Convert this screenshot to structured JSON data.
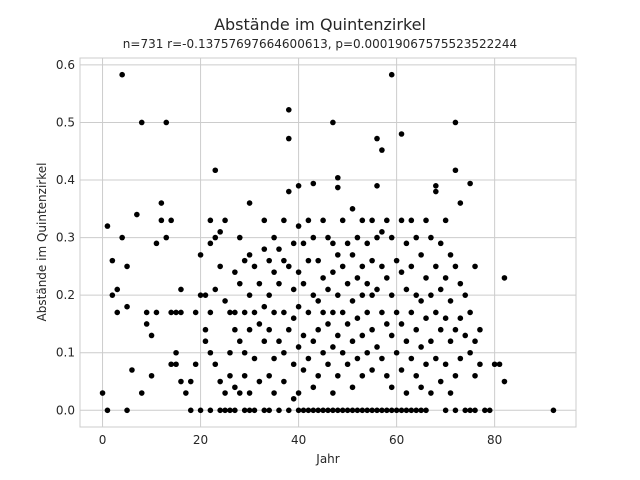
{
  "chart_data": {
    "type": "scatter",
    "title": "Abstände im Quintenzirkel",
    "subtitle": "n=731 r=-0.13757697664600613, p=0.00019067575523522244",
    "xlabel": "Jahr",
    "ylabel": "Abstände im Quintenzirkel",
    "xlim": [
      -4.6,
      96.6
    ],
    "ylim": [
      -0.029,
      0.612
    ],
    "xticks": [
      0,
      20,
      40,
      60,
      80
    ],
    "yticks": [
      0.0,
      0.1,
      0.2,
      0.3,
      0.4,
      0.5,
      0.6
    ],
    "grid": true,
    "marker_color": "#000000",
    "series": [
      {
        "points": [
          [
            0,
            0.03
          ],
          [
            1,
            0.0
          ],
          [
            1,
            0.32
          ],
          [
            2,
            0.26
          ],
          [
            2,
            0.2
          ],
          [
            3,
            0.21
          ],
          [
            3,
            0.17
          ],
          [
            4,
            0.583
          ],
          [
            4,
            0.3
          ],
          [
            5,
            0.25
          ],
          [
            5,
            0.0
          ],
          [
            5,
            0.18
          ],
          [
            6,
            0.07
          ],
          [
            7,
            0.34
          ],
          [
            8,
            0.5
          ],
          [
            8,
            0.03
          ],
          [
            9,
            0.17
          ],
          [
            9,
            0.15
          ],
          [
            10,
            0.13
          ],
          [
            10,
            0.06
          ],
          [
            11,
            0.29
          ],
          [
            11,
            0.17
          ],
          [
            12,
            0.36
          ],
          [
            12,
            0.33
          ],
          [
            13,
            0.5
          ],
          [
            13,
            0.3
          ],
          [
            14,
            0.33
          ],
          [
            14,
            0.17
          ],
          [
            14,
            0.08
          ],
          [
            15,
            0.17
          ],
          [
            15,
            0.1
          ],
          [
            15,
            0.08
          ],
          [
            16,
            0.21
          ],
          [
            16,
            0.17
          ],
          [
            16,
            0.05
          ],
          [
            17,
            0.03
          ],
          [
            18,
            0.0
          ],
          [
            18,
            0.05
          ],
          [
            19,
            0.17
          ],
          [
            19,
            0.08
          ],
          [
            20,
            0.2
          ],
          [
            20,
            0.0
          ],
          [
            20,
            0.27
          ],
          [
            21,
            0.2
          ],
          [
            21,
            0.14
          ],
          [
            21,
            0.12
          ],
          [
            22,
            0.33
          ],
          [
            22,
            0.29
          ],
          [
            22,
            0.17
          ],
          [
            22,
            0.1
          ],
          [
            22,
            0.0
          ],
          [
            23,
            0.417
          ],
          [
            23,
            0.3
          ],
          [
            23,
            0.21
          ],
          [
            23,
            0.08
          ],
          [
            24,
            0.31
          ],
          [
            24,
            0.25
          ],
          [
            24,
            0.0
          ],
          [
            24,
            0.05
          ],
          [
            25,
            0.33
          ],
          [
            25,
            0.19
          ],
          [
            25,
            0.03
          ],
          [
            25,
            0.0
          ],
          [
            26,
            0.17
          ],
          [
            26,
            0.1
          ],
          [
            26,
            0.0
          ],
          [
            26,
            0.06
          ],
          [
            27,
            0.24
          ],
          [
            27,
            0.17
          ],
          [
            27,
            0.14
          ],
          [
            27,
            0.04
          ],
          [
            27,
            0.0
          ],
          [
            28,
            0.3
          ],
          [
            28,
            0.22
          ],
          [
            28,
            0.12
          ],
          [
            28,
            0.03
          ],
          [
            29,
            0.26
          ],
          [
            29,
            0.17
          ],
          [
            29,
            0.1
          ],
          [
            29,
            0.0
          ],
          [
            29,
            0.06
          ],
          [
            30,
            0.36
          ],
          [
            30,
            0.27
          ],
          [
            30,
            0.2
          ],
          [
            30,
            0.14
          ],
          [
            30,
            0.03
          ],
          [
            30,
            0.0
          ],
          [
            31,
            0.25
          ],
          [
            31,
            0.17
          ],
          [
            31,
            0.09
          ],
          [
            31,
            0.0
          ],
          [
            32,
            0.22
          ],
          [
            32,
            0.15
          ],
          [
            32,
            0.05
          ],
          [
            33,
            0.33
          ],
          [
            33,
            0.28
          ],
          [
            33,
            0.18
          ],
          [
            33,
            0.12
          ],
          [
            33,
            0.0
          ],
          [
            34,
            0.26
          ],
          [
            34,
            0.2
          ],
          [
            34,
            0.14
          ],
          [
            34,
            0.06
          ],
          [
            34,
            0.0
          ],
          [
            35,
            0.3
          ],
          [
            35,
            0.24
          ],
          [
            35,
            0.17
          ],
          [
            35,
            0.09
          ],
          [
            35,
            0.03
          ],
          [
            36,
            0.28
          ],
          [
            36,
            0.22
          ],
          [
            36,
            0.12
          ],
          [
            36,
            0.0
          ],
          [
            37,
            0.33
          ],
          [
            37,
            0.26
          ],
          [
            37,
            0.17
          ],
          [
            37,
            0.1
          ],
          [
            37,
            0.05
          ],
          [
            38,
            0.522
          ],
          [
            38,
            0.472
          ],
          [
            38,
            0.38
          ],
          [
            38,
            0.25
          ],
          [
            38,
            0.14
          ],
          [
            38,
            0.0
          ],
          [
            39,
            0.29
          ],
          [
            39,
            0.21
          ],
          [
            39,
            0.16
          ],
          [
            39,
            0.08
          ],
          [
            39,
            0.02
          ],
          [
            40,
            0.39
          ],
          [
            40,
            0.32
          ],
          [
            40,
            0.24
          ],
          [
            40,
            0.18
          ],
          [
            40,
            0.11
          ],
          [
            40,
            0.03
          ],
          [
            40,
            0.0
          ],
          [
            41,
            0.29
          ],
          [
            41,
            0.22
          ],
          [
            41,
            0.13
          ],
          [
            41,
            0.07
          ],
          [
            41,
            0.0
          ],
          [
            42,
            0.33
          ],
          [
            42,
            0.26
          ],
          [
            42,
            0.17
          ],
          [
            42,
            0.09
          ],
          [
            42,
            0.0
          ],
          [
            43,
            0.394
          ],
          [
            43,
            0.3
          ],
          [
            43,
            0.2
          ],
          [
            43,
            0.12
          ],
          [
            43,
            0.04
          ],
          [
            43,
            0.0
          ],
          [
            44,
            0.26
          ],
          [
            44,
            0.19
          ],
          [
            44,
            0.14
          ],
          [
            44,
            0.06
          ],
          [
            44,
            0.0
          ],
          [
            45,
            0.33
          ],
          [
            45,
            0.23
          ],
          [
            45,
            0.17
          ],
          [
            45,
            0.1
          ],
          [
            45,
            0.0
          ],
          [
            46,
            0.3
          ],
          [
            46,
            0.21
          ],
          [
            46,
            0.15
          ],
          [
            46,
            0.08
          ],
          [
            46,
            0.0
          ],
          [
            47,
            0.5
          ],
          [
            47,
            0.29
          ],
          [
            47,
            0.24
          ],
          [
            47,
            0.17
          ],
          [
            47,
            0.11
          ],
          [
            47,
            0.03
          ],
          [
            47,
            0.0
          ],
          [
            48,
            0.404
          ],
          [
            48,
            0.387
          ],
          [
            48,
            0.27
          ],
          [
            48,
            0.2
          ],
          [
            48,
            0.13
          ],
          [
            48,
            0.06
          ],
          [
            48,
            0.0
          ],
          [
            49,
            0.33
          ],
          [
            49,
            0.25
          ],
          [
            49,
            0.17
          ],
          [
            49,
            0.1
          ],
          [
            49,
            0.0
          ],
          [
            50,
            0.29
          ],
          [
            50,
            0.22
          ],
          [
            50,
            0.15
          ],
          [
            50,
            0.08
          ],
          [
            50,
            0.0
          ],
          [
            51,
            0.35
          ],
          [
            51,
            0.27
          ],
          [
            51,
            0.19
          ],
          [
            51,
            0.12
          ],
          [
            51,
            0.04
          ],
          [
            51,
            0.0
          ],
          [
            52,
            0.3
          ],
          [
            52,
            0.23
          ],
          [
            52,
            0.16
          ],
          [
            52,
            0.09
          ],
          [
            52,
            0.0
          ],
          [
            53,
            0.33
          ],
          [
            53,
            0.25
          ],
          [
            53,
            0.2
          ],
          [
            53,
            0.13
          ],
          [
            53,
            0.06
          ],
          [
            53,
            0.0
          ],
          [
            54,
            0.29
          ],
          [
            54,
            0.22
          ],
          [
            54,
            0.17
          ],
          [
            54,
            0.1
          ],
          [
            54,
            0.0
          ],
          [
            55,
            0.33
          ],
          [
            55,
            0.26
          ],
          [
            55,
            0.2
          ],
          [
            55,
            0.14
          ],
          [
            55,
            0.07
          ],
          [
            55,
            0.0
          ],
          [
            56,
            0.472
          ],
          [
            56,
            0.39
          ],
          [
            56,
            0.3
          ],
          [
            56,
            0.21
          ],
          [
            56,
            0.11
          ],
          [
            56,
            0.0
          ],
          [
            57,
            0.452
          ],
          [
            57,
            0.31
          ],
          [
            57,
            0.25
          ],
          [
            57,
            0.17
          ],
          [
            57,
            0.09
          ],
          [
            57,
            0.0
          ],
          [
            58,
            0.33
          ],
          [
            58,
            0.23
          ],
          [
            58,
            0.15
          ],
          [
            58,
            0.06
          ],
          [
            58,
            0.0
          ],
          [
            59,
            0.583
          ],
          [
            59,
            0.3
          ],
          [
            59,
            0.2
          ],
          [
            59,
            0.13
          ],
          [
            59,
            0.04
          ],
          [
            59,
            0.0
          ],
          [
            60,
            0.26
          ],
          [
            60,
            0.17
          ],
          [
            60,
            0.1
          ],
          [
            60,
            0.0
          ],
          [
            61,
            0.48
          ],
          [
            61,
            0.33
          ],
          [
            61,
            0.24
          ],
          [
            61,
            0.15
          ],
          [
            61,
            0.07
          ],
          [
            61,
            0.0
          ],
          [
            62,
            0.29
          ],
          [
            62,
            0.21
          ],
          [
            62,
            0.12
          ],
          [
            62,
            0.03
          ],
          [
            62,
            0.0
          ],
          [
            63,
            0.33
          ],
          [
            63,
            0.25
          ],
          [
            63,
            0.17
          ],
          [
            63,
            0.09
          ],
          [
            63,
            0.0
          ],
          [
            64,
            0.3
          ],
          [
            64,
            0.2
          ],
          [
            64,
            0.14
          ],
          [
            64,
            0.06
          ],
          [
            64,
            0.0
          ],
          [
            65,
            0.27
          ],
          [
            65,
            0.19
          ],
          [
            65,
            0.11
          ],
          [
            65,
            0.04
          ],
          [
            65,
            0.0
          ],
          [
            66,
            0.33
          ],
          [
            66,
            0.23
          ],
          [
            66,
            0.16
          ],
          [
            66,
            0.08
          ],
          [
            66,
            0.0
          ],
          [
            67,
            0.3
          ],
          [
            67,
            0.2
          ],
          [
            67,
            0.12
          ],
          [
            67,
            0.03
          ],
          [
            68,
            0.39
          ],
          [
            68,
            0.38
          ],
          [
            68,
            0.25
          ],
          [
            68,
            0.17
          ],
          [
            68,
            0.09
          ],
          [
            69,
            0.29
          ],
          [
            69,
            0.21
          ],
          [
            69,
            0.14
          ],
          [
            69,
            0.05
          ],
          [
            70,
            0.33
          ],
          [
            70,
            0.23
          ],
          [
            70,
            0.16
          ],
          [
            70,
            0.08
          ],
          [
            70,
            0.0
          ],
          [
            71,
            0.27
          ],
          [
            71,
            0.19
          ],
          [
            71,
            0.12
          ],
          [
            71,
            0.03
          ],
          [
            72,
            0.5
          ],
          [
            72,
            0.417
          ],
          [
            72,
            0.25
          ],
          [
            72,
            0.14
          ],
          [
            72,
            0.06
          ],
          [
            72,
            0.0
          ],
          [
            73,
            0.36
          ],
          [
            73,
            0.22
          ],
          [
            73,
            0.16
          ],
          [
            73,
            0.09
          ],
          [
            74,
            0.2
          ],
          [
            74,
            0.13
          ],
          [
            74,
            0.0
          ],
          [
            75,
            0.394
          ],
          [
            75,
            0.17
          ],
          [
            75,
            0.1
          ],
          [
            75,
            0.0
          ],
          [
            76,
            0.25
          ],
          [
            76,
            0.12
          ],
          [
            76,
            0.06
          ],
          [
            76,
            0.0
          ],
          [
            77,
            0.14
          ],
          [
            77,
            0.08
          ],
          [
            78,
            0.0
          ],
          [
            79,
            0.0
          ],
          [
            80,
            0.08
          ],
          [
            81,
            0.08
          ],
          [
            82,
            0.23
          ],
          [
            82,
            0.05
          ],
          [
            92,
            0.0
          ]
        ]
      }
    ]
  }
}
